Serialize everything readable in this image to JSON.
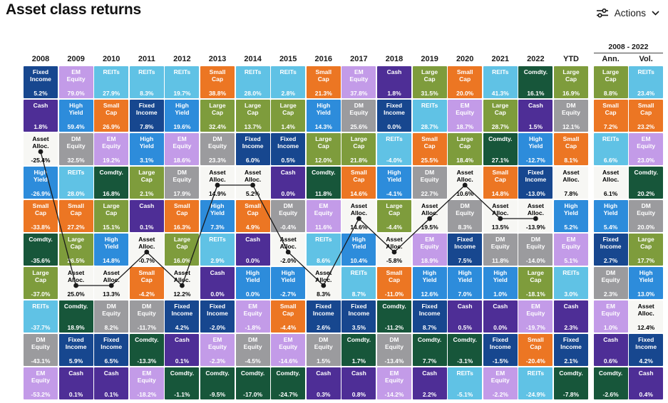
{
  "page": {
    "title": "Asset class returns"
  },
  "actions": {
    "label": "Actions"
  },
  "group_header": {
    "label": "2008 - 2022"
  },
  "colors": {
    "line": "#1a1a1a",
    "header_text": "#1a1a1a"
  },
  "chart_data": {
    "type": "table",
    "title": "Asset class returns",
    "subtitle": "Asset class returns quilt, ranked best to worst per year, with Asset Alloc. line overlay",
    "legend_position": "none",
    "asset_colors": {
      "Fixed Income": {
        "bg": "#17478F",
        "text": "#FFFFFF"
      },
      "EM Equity": {
        "bg": "#C39BE8",
        "text": "#FFFFFF"
      },
      "REITs": {
        "bg": "#60C2E5",
        "text": "#FFFFFF"
      },
      "Cash": {
        "bg": "#4E2E96",
        "text": "#FFFFFF"
      },
      "High Yield": {
        "bg": "#2D8CDB",
        "text": "#FFFFFF"
      },
      "Small Cap": {
        "bg": "#EC7623",
        "text": "#FFFFFF"
      },
      "Large Cap": {
        "bg": "#7E9C3C",
        "text": "#FFFFFF"
      },
      "DM Equity": {
        "bg": "#9B9B9E",
        "text": "#FFFFFF"
      },
      "Comdty.": {
        "bg": "#17563A",
        "text": "#FFFFFF"
      },
      "Asset Alloc.": {
        "bg": "#F7F7F4",
        "text": "#000000"
      }
    },
    "columns": [
      {
        "label": "2008",
        "cells": [
          [
            "Fixed Income",
            "5.2%"
          ],
          [
            "Cash",
            "1.8%"
          ],
          [
            "Asset Alloc.",
            "-25.4%"
          ],
          [
            "High Yield",
            "-26.9%"
          ],
          [
            "Small Cap",
            "-33.8%"
          ],
          [
            "Comdty.",
            "-35.6%"
          ],
          [
            "Large Cap",
            "-37.0%"
          ],
          [
            "REITs",
            "-37.7%"
          ],
          [
            "DM Equity",
            "-43.1%"
          ],
          [
            "EM Equity",
            "-53.2%"
          ]
        ]
      },
      {
        "label": "2009",
        "cells": [
          [
            "EM Equity",
            "79.0%"
          ],
          [
            "High Yield",
            "59.4%"
          ],
          [
            "DM Equity",
            "32.5%"
          ],
          [
            "REITs",
            "28.0%"
          ],
          [
            "Small Cap",
            "27.2%"
          ],
          [
            "Large Cap",
            "26.5%"
          ],
          [
            "Asset Alloc.",
            "25.0%"
          ],
          [
            "Comdty.",
            "18.9%"
          ],
          [
            "Fixed Income",
            "5.9%"
          ],
          [
            "Cash",
            "0.1%"
          ]
        ]
      },
      {
        "label": "2010",
        "cells": [
          [
            "REITs",
            "27.9%"
          ],
          [
            "Small Cap",
            "26.9%"
          ],
          [
            "EM Equity",
            "19.2%"
          ],
          [
            "Comdty.",
            "16.8%"
          ],
          [
            "Large Cap",
            "15.1%"
          ],
          [
            "High Yield",
            "14.8%"
          ],
          [
            "Asset Alloc.",
            "13.3%"
          ],
          [
            "DM Equity",
            "8.2%"
          ],
          [
            "Fixed Income",
            "6.5%"
          ],
          [
            "Cash",
            "0.1%"
          ]
        ]
      },
      {
        "label": "2011",
        "cells": [
          [
            "REITs",
            "8.3%"
          ],
          [
            "Fixed Income",
            "7.8%"
          ],
          [
            "High Yield",
            "3.1%"
          ],
          [
            "Large Cap",
            "2.1%"
          ],
          [
            "Cash",
            "0.1%"
          ],
          [
            "Asset Alloc.",
            "-0.7%"
          ],
          [
            "Small Cap",
            "-4.2%"
          ],
          [
            "DM Equity",
            "-11.7%"
          ],
          [
            "Comdty.",
            "-13.3%"
          ],
          [
            "EM Equity",
            "-18.2%"
          ]
        ]
      },
      {
        "label": "2012",
        "cells": [
          [
            "REITs",
            "19.7%"
          ],
          [
            "High Yield",
            "19.6%"
          ],
          [
            "EM Equity",
            "18.6%"
          ],
          [
            "DM Equity",
            "17.9%"
          ],
          [
            "Small Cap",
            "16.3%"
          ],
          [
            "Large Cap",
            "16.0%"
          ],
          [
            "Asset Alloc.",
            "12.2%"
          ],
          [
            "Fixed Income",
            "4.2%"
          ],
          [
            "Cash",
            "0.1%"
          ],
          [
            "Comdty.",
            "-1.1%"
          ]
        ]
      },
      {
        "label": "2013",
        "cells": [
          [
            "Small Cap",
            "38.8%"
          ],
          [
            "Large Cap",
            "32.4%"
          ],
          [
            "DM Equity",
            "23.3%"
          ],
          [
            "Asset Alloc.",
            "14.9%"
          ],
          [
            "High Yield",
            "7.3%"
          ],
          [
            "REITs",
            "2.9%"
          ],
          [
            "Cash",
            "0.0%"
          ],
          [
            "Fixed Income",
            "-2.0%"
          ],
          [
            "EM Equity",
            "-2.3%"
          ],
          [
            "Comdty.",
            "-9.5%"
          ]
        ]
      },
      {
        "label": "2014",
        "cells": [
          [
            "REITs",
            "28.0%"
          ],
          [
            "Large Cap",
            "13.7%"
          ],
          [
            "Fixed Income",
            "6.0%"
          ],
          [
            "Asset Alloc.",
            "5.2%"
          ],
          [
            "Small Cap",
            "4.9%"
          ],
          [
            "Cash",
            "0.0%"
          ],
          [
            "High Yield",
            "0.0%"
          ],
          [
            "EM Equity",
            "-1.8%"
          ],
          [
            "DM Equity",
            "-4.5%"
          ],
          [
            "Comdty.",
            "-17.0%"
          ]
        ]
      },
      {
        "label": "2015",
        "cells": [
          [
            "REITs",
            "2.8%"
          ],
          [
            "Large Cap",
            "1.4%"
          ],
          [
            "Fixed Income",
            "0.5%"
          ],
          [
            "Cash",
            "0.0%"
          ],
          [
            "DM Equity",
            "-0.4%"
          ],
          [
            "Asset Alloc.",
            "-2.0%"
          ],
          [
            "High Yield",
            "-2.7%"
          ],
          [
            "Small Cap",
            "-4.4%"
          ],
          [
            "EM Equity",
            "-14.6%"
          ],
          [
            "Comdty.",
            "-24.7%"
          ]
        ]
      },
      {
        "label": "2016",
        "cells": [
          [
            "Small Cap",
            "21.3%"
          ],
          [
            "High Yield",
            "14.3%"
          ],
          [
            "Large Cap",
            "12.0%"
          ],
          [
            "Comdty.",
            "11.8%"
          ],
          [
            "EM Equity",
            "11.6%"
          ],
          [
            "REITs",
            "8.6%"
          ],
          [
            "Asset Alloc.",
            "8.3%"
          ],
          [
            "Fixed Income",
            "2.6%"
          ],
          [
            "DM Equity",
            "1.5%"
          ],
          [
            "Cash",
            "0.3%"
          ]
        ]
      },
      {
        "label": "2017",
        "cells": [
          [
            "EM Equity",
            "37.8%"
          ],
          [
            "DM Equity",
            "25.6%"
          ],
          [
            "Large Cap",
            "21.8%"
          ],
          [
            "Small Cap",
            "14.6%"
          ],
          [
            "Asset Alloc.",
            "14.6%"
          ],
          [
            "High Yield",
            "10.4%"
          ],
          [
            "REITs",
            "8.7%"
          ],
          [
            "Fixed Income",
            "3.5%"
          ],
          [
            "Comdty.",
            "1.7%"
          ],
          [
            "Cash",
            "0.8%"
          ]
        ]
      },
      {
        "label": "2018",
        "cells": [
          [
            "Cash",
            "1.8%"
          ],
          [
            "Fixed Income",
            "0.0%"
          ],
          [
            "REITs",
            "-4.0%"
          ],
          [
            "High Yield",
            "-4.1%"
          ],
          [
            "Large Cap",
            "-4.4%"
          ],
          [
            "Asset Alloc.",
            "-5.8%"
          ],
          [
            "Small Cap",
            "-11.0%"
          ],
          [
            "Comdty.",
            "-11.2%"
          ],
          [
            "DM Equity",
            "-13.4%"
          ],
          [
            "EM Equity",
            "-14.2%"
          ]
        ]
      },
      {
        "label": "2019",
        "cells": [
          [
            "Large Cap",
            "31.5%"
          ],
          [
            "REITs",
            "28.7%"
          ],
          [
            "Small Cap",
            "25.5%"
          ],
          [
            "DM Equity",
            "22.7%"
          ],
          [
            "Asset Alloc.",
            "19.5%"
          ],
          [
            "EM Equity",
            "18.9%"
          ],
          [
            "High Yield",
            "12.6%"
          ],
          [
            "Fixed Income",
            "8.7%"
          ],
          [
            "Comdty.",
            "7.7%"
          ],
          [
            "Cash",
            "2.2%"
          ]
        ]
      },
      {
        "label": "2020",
        "cells": [
          [
            "Small Cap",
            "20.0%"
          ],
          [
            "EM Equity",
            "18.7%"
          ],
          [
            "Large Cap",
            "18.4%"
          ],
          [
            "Asset Alloc.",
            "10.6%"
          ],
          [
            "DM Equity",
            "8.3%"
          ],
          [
            "Fixed Income",
            "7.5%"
          ],
          [
            "High Yield",
            "7.0%"
          ],
          [
            "Cash",
            "0.5%"
          ],
          [
            "Comdty.",
            "-3.1%"
          ],
          [
            "REITs",
            "-5.1%"
          ]
        ]
      },
      {
        "label": "2021",
        "cells": [
          [
            "REITs",
            "41.3%"
          ],
          [
            "Large Cap",
            "28.7%"
          ],
          [
            "Comdty.",
            "27.1%"
          ],
          [
            "Small Cap",
            "14.8%"
          ],
          [
            "Asset Alloc.",
            "13.5%"
          ],
          [
            "DM Equity",
            "11.8%"
          ],
          [
            "High Yield",
            "1.0%"
          ],
          [
            "Cash",
            "0.0%"
          ],
          [
            "Fixed Income",
            "-1.5%"
          ],
          [
            "EM Equity",
            "-2.2%"
          ]
        ]
      },
      {
        "label": "2022",
        "cells": [
          [
            "Comdty.",
            "16.1%"
          ],
          [
            "Cash",
            "1.5%"
          ],
          [
            "High Yield",
            "-12.7%"
          ],
          [
            "Fixed Income",
            "-13.0%"
          ],
          [
            "Asset Alloc.",
            "-13.9%"
          ],
          [
            "DM Equity",
            "-14.0%"
          ],
          [
            "Large Cap",
            "-18.1%"
          ],
          [
            "EM Equity",
            "-19.7%"
          ],
          [
            "Small Cap",
            "-20.4%"
          ],
          [
            "REITs",
            "-24.9%"
          ]
        ]
      },
      {
        "label": "YTD",
        "cells": [
          [
            "Large Cap",
            "16.9%"
          ],
          [
            "DM Equity",
            "12.1%"
          ],
          [
            "Small Cap",
            "8.1%"
          ],
          [
            "Asset Alloc.",
            "7.8%"
          ],
          [
            "High Yield",
            "5.2%"
          ],
          [
            "EM Equity",
            "5.1%"
          ],
          [
            "REITs",
            "3.0%"
          ],
          [
            "Cash",
            "2.3%"
          ],
          [
            "Fixed Income",
            "2.1%"
          ],
          [
            "Comdty.",
            "-7.8%"
          ]
        ]
      },
      {
        "label": "Ann.",
        "cells": [
          [
            "Large Cap",
            "8.8%"
          ],
          [
            "Small Cap",
            "7.2%"
          ],
          [
            "REITs",
            "6.6%"
          ],
          [
            "Asset Alloc.",
            "6.1%"
          ],
          [
            "High Yield",
            "5.4%"
          ],
          [
            "Fixed Income",
            "2.7%"
          ],
          [
            "DM Equity",
            "2.3%"
          ],
          [
            "EM Equity",
            "1.0%"
          ],
          [
            "Cash",
            "0.6%"
          ],
          [
            "Comdty.",
            "-2.6%"
          ]
        ]
      },
      {
        "label": "Vol.",
        "cells": [
          [
            "REITs",
            "23.4%"
          ],
          [
            "Small Cap",
            "23.2%"
          ],
          [
            "EM Equity",
            "23.0%"
          ],
          [
            "Comdty.",
            "20.2%"
          ],
          [
            "DM Equity",
            "20.0%"
          ],
          [
            "Large Cap",
            "17.7%"
          ],
          [
            "High Yield",
            "13.0%"
          ],
          [
            "Asset Alloc.",
            "12.4%"
          ],
          [
            "Fixed Income",
            "4.2%"
          ],
          [
            "Cash",
            "0.4%"
          ]
        ]
      }
    ],
    "line_overlay": {
      "name": "Asset Alloc. path",
      "points": [
        {
          "col": 0,
          "row": 2
        },
        {
          "col": 1,
          "row": 6
        },
        {
          "col": 2,
          "row": 6
        },
        {
          "col": 3,
          "row": 5
        },
        {
          "col": 4,
          "row": 6
        },
        {
          "col": 5,
          "row": 3
        },
        {
          "col": 6,
          "row": 3
        },
        {
          "col": 7,
          "row": 5
        },
        {
          "col": 8,
          "row": 6
        },
        {
          "col": 9,
          "row": 4
        },
        {
          "col": 10,
          "row": 5
        },
        {
          "col": 11,
          "row": 4
        },
        {
          "col": 12,
          "row": 3
        },
        {
          "col": 13,
          "row": 4
        },
        {
          "col": 14,
          "row": 4
        }
      ]
    }
  }
}
